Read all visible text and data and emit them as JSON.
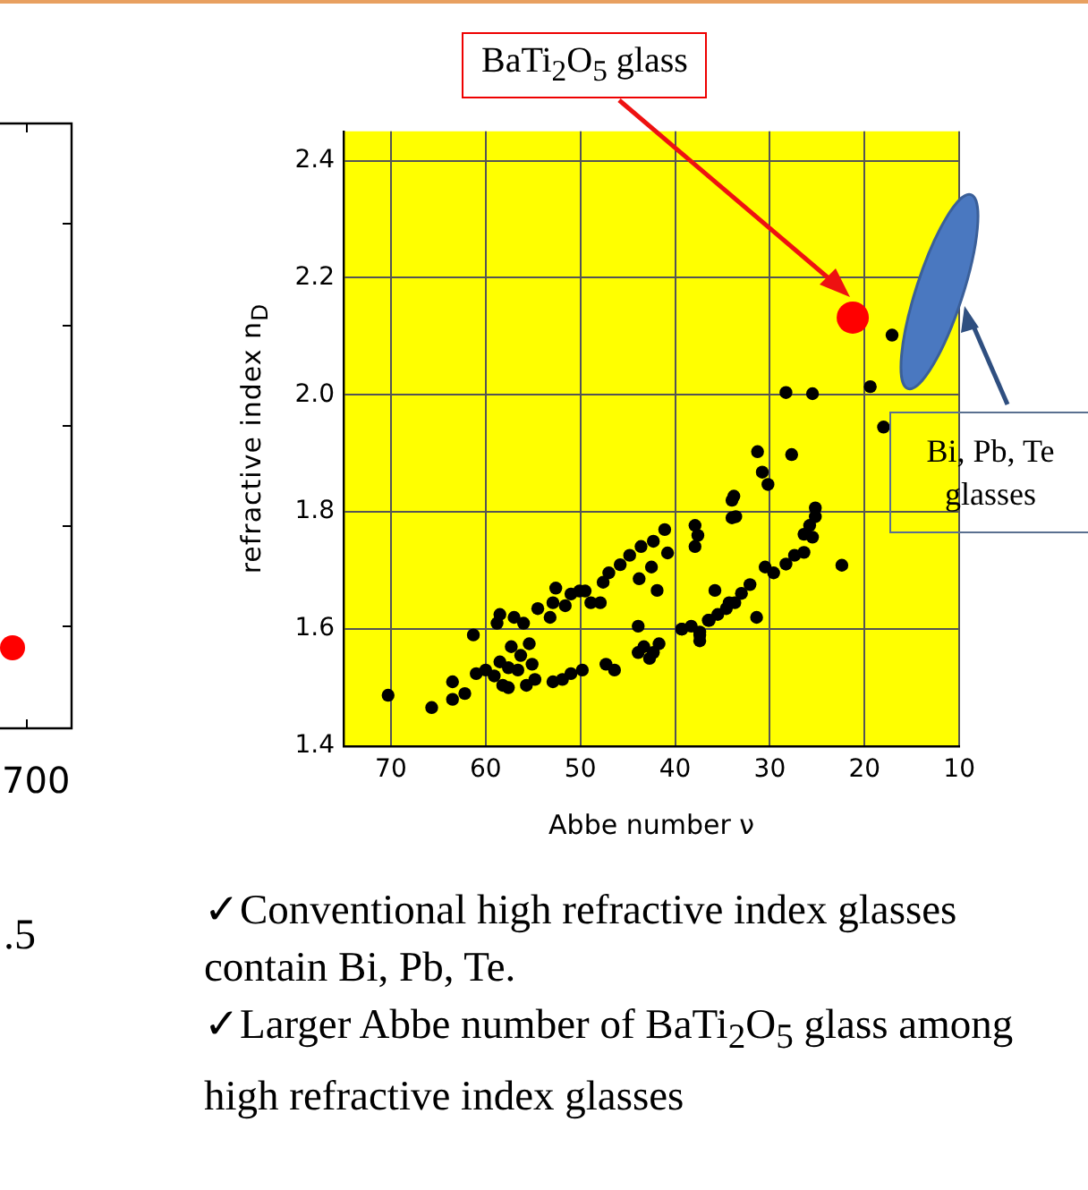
{
  "chart_data": {
    "type": "scatter",
    "xlabel": "Abbe number ν",
    "ylabel": "refractive index n$_{D}$",
    "xlim": [
      75,
      10
    ],
    "xticks": [
      70,
      60,
      50,
      40,
      30,
      20,
      10
    ],
    "ylim": [
      1.4,
      2.45
    ],
    "yticks": [
      1.4,
      1.6,
      1.8,
      {
        "value": 2,
        "label": "2.0"
      },
      2.2,
      2.4
    ],
    "grid": true,
    "legend": false,
    "marker": "circle",
    "series": [
      {
        "color": "#000000",
        "x": [
          70.3,
          65.7,
          63.5,
          63.5,
          62.2,
          61.3,
          61,
          60,
          59.1,
          58.5,
          58.2,
          57.6,
          57.3,
          57.6,
          56.6,
          56.3,
          58.5,
          58.8,
          57,
          56,
          55.4,
          55.1,
          54.8,
          55.7,
          54.5,
          53.2,
          52.9,
          52.6,
          51.6,
          51,
          50.1,
          49.5,
          48.9,
          47.9,
          47.6,
          47,
          45.8,
          44.8,
          43.6,
          42.3,
          41.1,
          40.8,
          42.5,
          43.8,
          41.9,
          37.9,
          37.9,
          37.6,
          35.8,
          34,
          34,
          52.9,
          51.9,
          51,
          49.8,
          47.3,
          46.4,
          43.9,
          43.9,
          43.3,
          42.3,
          42.7,
          41.7,
          39.3,
          38.3,
          37.4,
          37.4,
          36.5,
          35.5,
          34.6,
          33.7,
          17.1,
          19.4,
          18,
          28.3,
          25.5,
          31.3,
          30.8,
          30.2,
          27.7,
          33.8,
          33.6,
          22.4,
          25.2,
          25.2,
          25.8,
          26.4,
          25.5,
          26.4,
          27.4,
          28.3,
          29.6,
          30.5,
          32.1,
          33,
          34.3,
          31.4,
          36.4,
          37.4,
          39.3
        ],
        "values": [
          1.487,
          1.466,
          1.48,
          1.51,
          1.49,
          1.59,
          1.524,
          1.53,
          1.52,
          1.544,
          1.504,
          1.534,
          1.57,
          1.5,
          1.53,
          1.555,
          1.625,
          1.61,
          1.62,
          1.61,
          1.575,
          1.54,
          1.514,
          1.504,
          1.635,
          1.62,
          1.645,
          1.67,
          1.64,
          1.66,
          1.665,
          1.665,
          1.645,
          1.645,
          1.68,
          1.696,
          1.71,
          1.726,
          1.741,
          1.75,
          1.77,
          1.73,
          1.706,
          1.686,
          1.666,
          1.777,
          1.741,
          1.76,
          1.666,
          1.82,
          1.79,
          1.51,
          1.514,
          1.524,
          1.53,
          1.54,
          1.53,
          1.605,
          1.56,
          1.57,
          1.56,
          1.55,
          1.575,
          1.6,
          1.605,
          1.595,
          1.58,
          1.615,
          1.625,
          1.635,
          1.645,
          2.102,
          2.014,
          1.945,
          2.004,
          2.002,
          1.903,
          1.868,
          1.847,
          1.898,
          1.827,
          1.792,
          1.709,
          1.807,
          1.792,
          1.777,
          1.762,
          1.757,
          1.731,
          1.726,
          1.711,
          1.696,
          1.706,
          1.676,
          1.661,
          1.645,
          1.62,
          1.615,
          1.59,
          1.6
        ]
      },
      {
        "name": "BaTi$_{2}$O$_{5}$ glass",
        "color": "#ff0000",
        "x": [
          21.25
        ],
        "values": [
          2.132
        ]
      }
    ],
    "annotations": [
      "Bi, Pb, Te glasses",
      "700",
      ".5",
      "✓Conventional high refractive index glasses contain Bi, Pb, Te.",
      "✓Larger Abbe number of BaTi$_{2}$O$_{5}$ glass among high refractive index glasses"
    ]
  }
}
